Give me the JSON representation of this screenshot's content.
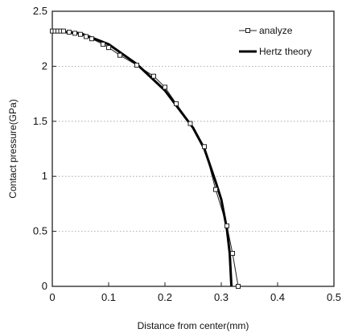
{
  "chart_data": {
    "type": "line",
    "xlabel": "Distance from center(mm)",
    "ylabel": "Contact pressure(GPa)",
    "xlim": [
      0,
      0.5
    ],
    "ylim": [
      0,
      2.5
    ],
    "x_ticks": [
      "0",
      "0.1",
      "0.2",
      "0.3",
      "0.4",
      "0.5"
    ],
    "y_ticks": [
      "0",
      "0.5",
      "1",
      "1.5",
      "2",
      "2.5"
    ],
    "grid": "horizontal dotted",
    "legend_position": "top-right",
    "series": [
      {
        "name": "analyze",
        "marker": "square",
        "line_style": "thin solid",
        "color": "#222222",
        "points": [
          [
            0.0,
            2.32
          ],
          [
            0.005,
            2.32
          ],
          [
            0.01,
            2.32
          ],
          [
            0.015,
            2.32
          ],
          [
            0.02,
            2.32
          ],
          [
            0.03,
            2.31
          ],
          [
            0.04,
            2.3
          ],
          [
            0.05,
            2.29
          ],
          [
            0.06,
            2.27
          ],
          [
            0.07,
            2.25
          ],
          [
            0.09,
            2.2
          ],
          [
            0.1,
            2.17
          ],
          [
            0.12,
            2.1
          ],
          [
            0.15,
            2.01
          ],
          [
            0.18,
            1.91
          ],
          [
            0.2,
            1.81
          ],
          [
            0.22,
            1.66
          ],
          [
            0.245,
            1.48
          ],
          [
            0.27,
            1.27
          ],
          [
            0.29,
            0.88
          ],
          [
            0.31,
            0.55
          ],
          [
            0.32,
            0.3
          ],
          [
            0.33,
            0.0
          ]
        ]
      },
      {
        "name": "Hertz theory",
        "marker": "none",
        "line_style": "thick solid",
        "color": "#000000",
        "points": [
          [
            0.0,
            2.32
          ],
          [
            0.05,
            2.3
          ],
          [
            0.1,
            2.2
          ],
          [
            0.15,
            2.02
          ],
          [
            0.2,
            1.78
          ],
          [
            0.25,
            1.44
          ],
          [
            0.27,
            1.25
          ],
          [
            0.29,
            0.95
          ],
          [
            0.3,
            0.79
          ],
          [
            0.31,
            0.52
          ],
          [
            0.315,
            0.3
          ],
          [
            0.318,
            0.0
          ]
        ]
      }
    ]
  }
}
